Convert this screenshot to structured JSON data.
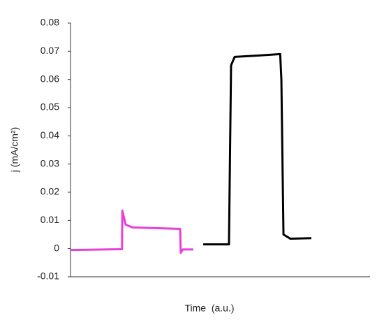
{
  "chart_data": {
    "type": "line",
    "ylabel": "j (mA/cm²)",
    "xlabel": "Time  (a.u.)",
    "xlim": [
      0,
      100
    ],
    "ylim": [
      -0.01,
      0.08
    ],
    "yticks": [
      -0.01,
      0,
      0.01,
      0.02,
      0.03,
      0.04,
      0.05,
      0.06,
      0.07,
      0.08
    ],
    "series": [
      {
        "color": "#e83fd9",
        "x": [
          0,
          17.2,
          17.3,
          18.4,
          20.7,
          36.6,
          36.8,
          37.5,
          41.0
        ],
        "values": [
          -0.0005,
          -0.0002,
          0.0135,
          0.0085,
          0.0075,
          0.007,
          -0.0015,
          -0.0003,
          -0.0003
        ]
      },
      {
        "color": "#000000",
        "x": [
          44.3,
          52.9,
          53.6,
          54.8,
          63,
          70,
          70.4,
          71.1,
          73.4,
          80.4
        ],
        "values": [
          0.0015,
          0.0015,
          0.065,
          0.068,
          0.0685,
          0.069,
          0.06,
          0.005,
          0.0035,
          0.0037
        ]
      }
    ]
  }
}
